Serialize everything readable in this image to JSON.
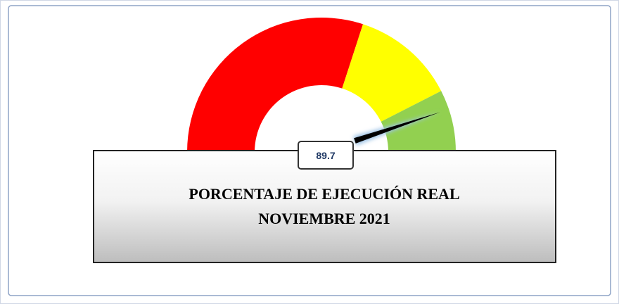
{
  "chart_data": {
    "type": "gauge",
    "title": "PORCENTAJE DE EJECUCIÓN REAL",
    "subtitle": "NOVIEMBRE 2021",
    "value": 89.7,
    "min": 0,
    "max": 100,
    "bands": [
      {
        "from": 0,
        "to": 60,
        "color": "#ff0000"
      },
      {
        "from": 60,
        "to": 85,
        "color": "#ffff00"
      },
      {
        "from": 85,
        "to": 100,
        "color": "#92d050"
      }
    ]
  }
}
